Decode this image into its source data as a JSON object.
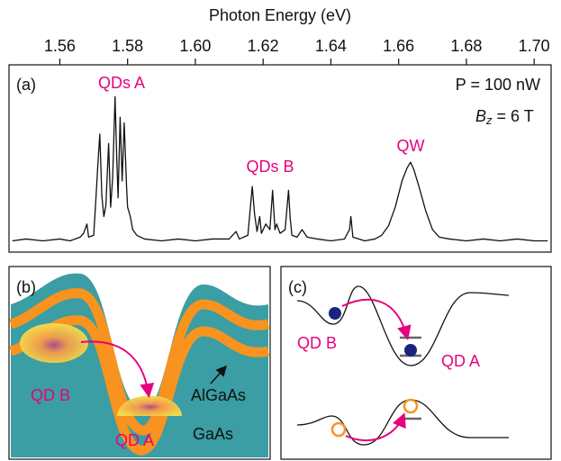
{
  "chart_data": {
    "type": "line",
    "x_label": "Photon Energy (eV)",
    "panel_label": "(a)",
    "annotations": {
      "power": "P = 100 nW",
      "field_symbol": "B",
      "field_subscript": "z",
      "field_rest": " = 6 T",
      "qds_a": "QDs A",
      "qds_b": "QDs B",
      "qw": "QW"
    },
    "xlim": [
      1.545,
      1.705
    ],
    "xticks": [
      1.56,
      1.58,
      {
        "value": 1.6,
        "label": "1.60"
      },
      1.62,
      1.64,
      1.66,
      1.68,
      {
        "value": 1.7,
        "label": "1.70"
      }
    ],
    "ylim": [
      0,
      100
    ],
    "grid": false,
    "series": [
      {
        "color": "#111111",
        "x": [
          1.546,
          1.55,
          1.555,
          1.56,
          1.563,
          1.566,
          1.567,
          1.568,
          1.5685,
          1.57,
          1.5707,
          1.5712,
          1.5718,
          1.5724,
          1.573,
          1.5736,
          1.5744,
          1.575,
          1.5756,
          1.5763,
          1.5768,
          1.5772,
          1.5778,
          1.5784,
          1.579,
          1.5797,
          1.58,
          1.5808,
          1.5815,
          1.5827,
          1.585,
          1.59,
          1.595,
          1.6,
          1.605,
          1.61,
          1.612,
          1.613,
          1.6155,
          1.6163,
          1.6168,
          1.6175,
          1.6182,
          1.619,
          1.6195,
          1.6208,
          1.622,
          1.6228,
          1.6235,
          1.624,
          1.625,
          1.6265,
          1.6275,
          1.628,
          1.6285,
          1.63,
          1.6315,
          1.633,
          1.636,
          1.64,
          1.644,
          1.6455,
          1.6459,
          1.6465,
          1.65,
          1.653,
          1.655,
          1.657,
          1.659,
          1.661,
          1.6625,
          1.6635,
          1.6645,
          1.666,
          1.668,
          1.67,
          1.672,
          1.675,
          1.68,
          1.685,
          1.69,
          1.695,
          1.7,
          1.704
        ],
        "values": [
          6,
          7,
          6,
          7,
          6,
          8,
          10,
          15,
          8,
          9,
          30,
          46,
          63,
          30,
          19,
          25,
          58,
          24,
          40,
          83,
          50,
          29,
          72,
          38,
          69,
          35,
          24,
          19,
          12,
          9,
          7,
          6,
          7,
          6,
          7,
          7,
          11,
          7,
          9,
          25,
          35,
          20,
          11,
          19,
          10,
          15,
          12,
          33,
          12,
          15,
          10,
          12,
          33,
          18,
          9,
          8,
          12,
          8,
          7,
          6,
          7,
          12,
          19,
          8,
          6,
          7,
          9,
          14,
          24,
          38,
          45,
          48,
          44,
          35,
          22,
          12,
          8,
          7,
          6,
          7,
          6,
          7,
          6,
          6
        ]
      }
    ]
  },
  "panel_b": {
    "label": "(b)",
    "qd_b": "QD B",
    "qd_a": "QD A",
    "barrier": "AlGaAs",
    "matrix": "GaAs"
  },
  "panel_c": {
    "label": "(c)",
    "qd_b": "QD B",
    "qd_a": "QD A"
  }
}
